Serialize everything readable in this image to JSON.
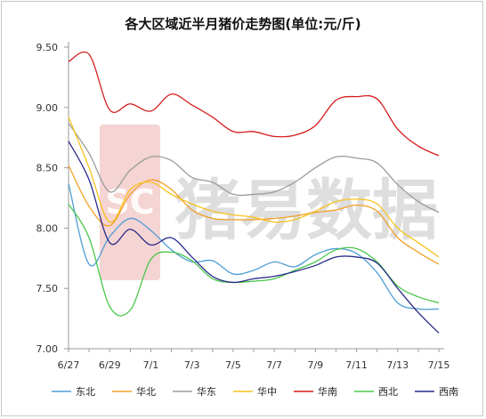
{
  "chart_data": {
    "type": "line",
    "title": "各大区域近半月猪价走势图(单位:元/斤)",
    "xlabel": "",
    "ylabel": "",
    "ylim": [
      7.0,
      9.5
    ],
    "yticks": [
      "7.00",
      "7.50",
      "8.00",
      "8.50",
      "9.00",
      "9.50"
    ],
    "xtick_labels": [
      "6/27",
      "6/29",
      "7/1",
      "7/3",
      "7/5",
      "7/7",
      "7/9",
      "7/11",
      "7/13",
      "7/15"
    ],
    "x": [
      "6/27",
      "6/28",
      "6/29",
      "6/30",
      "7/1",
      "7/2",
      "7/3",
      "7/4",
      "7/5",
      "7/6",
      "7/7",
      "7/8",
      "7/9",
      "7/10",
      "7/11",
      "7/12",
      "7/13",
      "7/14",
      "7/15"
    ],
    "grid": false,
    "legend_position": "bottom",
    "series": [
      {
        "name": "东北",
        "color": "#4f9ed6",
        "values": [
          8.37,
          7.7,
          7.93,
          8.08,
          7.98,
          7.82,
          7.72,
          7.73,
          7.62,
          7.65,
          7.72,
          7.68,
          7.78,
          7.83,
          7.79,
          7.63,
          7.38,
          7.33,
          7.33
        ]
      },
      {
        "name": "华北",
        "color": "#f0a028",
        "values": [
          8.52,
          8.18,
          8.02,
          8.28,
          8.4,
          8.32,
          8.15,
          8.08,
          8.07,
          8.07,
          8.08,
          8.1,
          8.13,
          8.15,
          8.19,
          8.14,
          7.92,
          7.8,
          7.7
        ]
      },
      {
        "name": "华东",
        "color": "#9b9b9b",
        "values": [
          8.87,
          8.62,
          8.3,
          8.48,
          8.59,
          8.56,
          8.42,
          8.38,
          8.28,
          8.28,
          8.3,
          8.38,
          8.5,
          8.59,
          8.58,
          8.54,
          8.36,
          8.22,
          8.13
        ]
      },
      {
        "name": "华中",
        "color": "#f7c21e",
        "values": [
          8.92,
          8.5,
          8.05,
          8.32,
          8.38,
          8.28,
          8.2,
          8.14,
          8.11,
          8.09,
          8.05,
          8.07,
          8.14,
          8.22,
          8.24,
          8.2,
          8.0,
          7.88,
          7.76
        ]
      },
      {
        "name": "华南",
        "color": "#d61c1c",
        "values": [
          9.38,
          9.44,
          8.98,
          9.03,
          8.97,
          9.11,
          9.02,
          8.92,
          8.8,
          8.8,
          8.76,
          8.77,
          8.85,
          9.06,
          9.09,
          9.07,
          8.82,
          8.68,
          8.6
        ]
      },
      {
        "name": "西北",
        "color": "#49c749",
        "values": [
          8.2,
          7.92,
          7.35,
          7.32,
          7.74,
          7.8,
          7.73,
          7.58,
          7.55,
          7.56,
          7.58,
          7.65,
          7.72,
          7.82,
          7.83,
          7.72,
          7.52,
          7.43,
          7.38
        ]
      },
      {
        "name": "西南",
        "color": "#2a2a8a",
        "values": [
          8.72,
          8.4,
          7.88,
          7.99,
          7.86,
          7.92,
          7.76,
          7.6,
          7.55,
          7.58,
          7.6,
          7.64,
          7.69,
          7.76,
          7.76,
          7.71,
          7.5,
          7.3,
          7.13
        ]
      }
    ]
  },
  "watermark": {
    "text": "猪易数据",
    "logo_text": "SC",
    "logo_color": "#e8a0a0"
  }
}
